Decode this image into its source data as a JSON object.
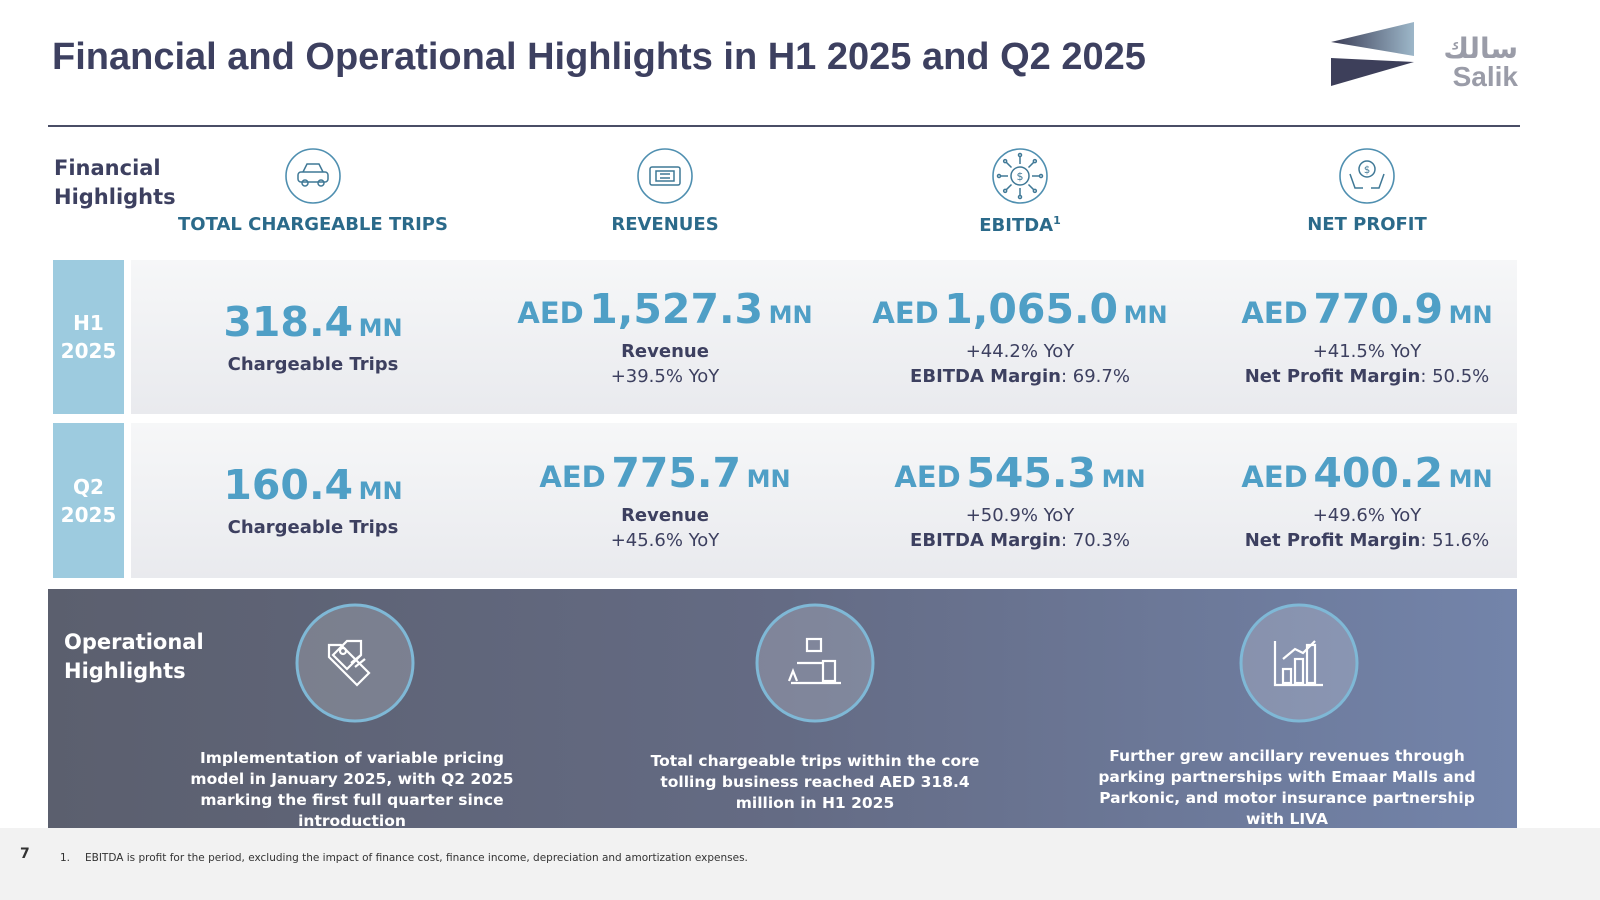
{
  "header": {
    "title": "Financial and Operational Highlights in H1 2025 and Q2 2025",
    "logo": {
      "arabic": "سالك",
      "latin": "Salik"
    }
  },
  "financial": {
    "label": "Financial Highlights",
    "columns": [
      {
        "label": "TOTAL CHARGEABLE TRIPS"
      },
      {
        "label": "REVENUES"
      },
      {
        "label": "EBITDA",
        "note": "1"
      },
      {
        "label": "NET PROFIT"
      }
    ],
    "rows": [
      {
        "label": "H1 2025",
        "cells": [
          {
            "amount": "318.4",
            "unit": "MN",
            "lines": [
              {
                "bold": "Chargeable Trips"
              }
            ]
          },
          {
            "prefix": "AED",
            "amount": "1,527.3",
            "unit": "MN",
            "lines": [
              {
                "bold": "Revenue"
              },
              {
                "text": "+39.5% YoY"
              }
            ]
          },
          {
            "prefix": "AED",
            "amount": "1,065.0",
            "unit": "MN",
            "lines": [
              {
                "text": "+44.2% YoY"
              },
              {
                "bold": "EBITDA Margin",
                "text": ": 69.7%"
              }
            ]
          },
          {
            "prefix": "AED",
            "amount": "770.9",
            "unit": "MN",
            "lines": [
              {
                "text": "+41.5% YoY"
              },
              {
                "bold": "Net Profit Margin",
                "text": ": 50.5%"
              }
            ]
          }
        ]
      },
      {
        "label": "Q2 2025",
        "cells": [
          {
            "amount": "160.4",
            "unit": "MN",
            "lines": [
              {
                "bold": "Chargeable Trips"
              }
            ]
          },
          {
            "prefix": "AED",
            "amount": "775.7",
            "unit": "MN",
            "lines": [
              {
                "bold": "Revenue"
              },
              {
                "text": "+45.6% YoY"
              }
            ]
          },
          {
            "prefix": "AED",
            "amount": "545.3",
            "unit": "MN",
            "lines": [
              {
                "text": "+50.9% YoY"
              },
              {
                "bold": "EBITDA Margin",
                "text": ": 70.3%"
              }
            ]
          },
          {
            "prefix": "AED",
            "amount": "400.2",
            "unit": "MN",
            "lines": [
              {
                "text": "+49.6% YoY"
              },
              {
                "bold": "Net Profit Margin",
                "text": ": 51.6%"
              }
            ]
          }
        ]
      }
    ]
  },
  "operational": {
    "label": "Operational Highlights",
    "items": [
      "Implementation of variable pricing model in January 2025, with Q2 2025 marking the first full quarter since introduction",
      "Total chargeable trips within the core tolling business reached AED 318.4 million in H1 2025",
      "Further grew ancillary revenues through parking partnerships with Emaar Malls and Parkonic, and motor insurance partnership with LIVA"
    ]
  },
  "footer": {
    "page": "7",
    "note_number": "1.",
    "note": "EBITDA is profit for the period, excluding the impact of finance cost, finance income, depreciation and amortization expenses."
  }
}
